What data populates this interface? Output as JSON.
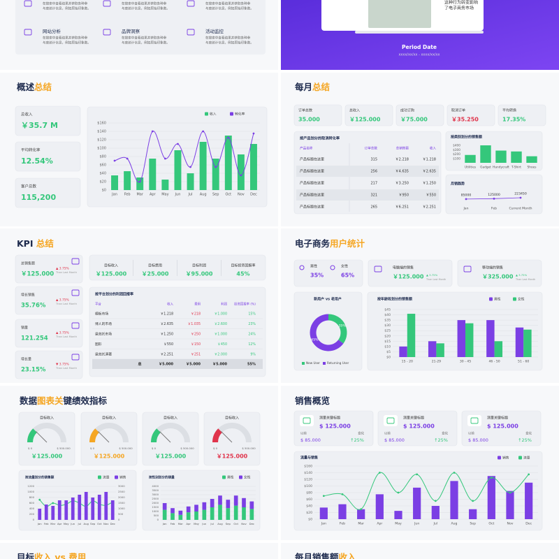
{
  "top_left": {
    "items": [
      {
        "text": [
          "在搜索中查看结果并获取各种参",
          "与度统计信息，例如原始印象数。"
        ]
      },
      {
        "text": [
          "在搜索中查看结果并获取各种参",
          "与度统计信息，例如原始印象数。"
        ]
      },
      {
        "text": [
          "在搜索中查看结果并获取各种参",
          "与度统计信息，例如原始印象数。"
        ]
      },
      {
        "title": "网站分析",
        "text": [
          "在搜索中查看结果并获取各种参",
          "与度统计信息，例如原始印象数。"
        ]
      },
      {
        "title": "品牌洞察",
        "text": [
          "在搜索中查看结果并获取各种参",
          "与度统计信息，例如原始印象数。"
        ]
      },
      {
        "title": "活动监控",
        "text": [
          "在搜索中查看结果并获取各种参",
          "与度统计信息，例如原始印象数。"
        ]
      }
    ]
  },
  "top_right": {
    "caption": [
      "这种行为转变影响",
      "了电子商务市场"
    ],
    "period_label": "Period Date",
    "period_value": "xxxx/xx/xx - xxxx/xx/xx"
  },
  "overview": {
    "title": "概述",
    "title_accent": "总结",
    "kpis": [
      {
        "label": "总收入",
        "value": "￥35.7 M"
      },
      {
        "label": "平均转化率",
        "value": "12.54%"
      },
      {
        "label": "客户总数",
        "value": "115,200"
      }
    ]
  },
  "monthly": {
    "title": "每月",
    "title_accent": "总结",
    "kpis": [
      {
        "label": "订单总数",
        "value": "35.000"
      },
      {
        "label": "总收入",
        "value": "￥125.000"
      },
      {
        "label": "成功订购",
        "value": "￥75.000"
      },
      {
        "label": "取消订单",
        "value": "￥35.250"
      },
      {
        "label": "平均转换",
        "value": "17.35%"
      }
    ],
    "table": {
      "title": "按产品划分的取消转化率",
      "header": [
        "产品名称",
        "订单总数",
        "总销售额",
        "收入"
      ],
      "rows": [
        [
          "产品标题在这里",
          "315",
          "￥2.218",
          "￥1.218"
        ],
        [
          "产品标题在这里",
          "256",
          "￥4.635",
          "￥2.635"
        ],
        [
          "产品标题在这里",
          "217",
          "￥3.250",
          "￥1.250"
        ],
        [
          "产品标题在这里",
          "321",
          "￥950",
          "￥550"
        ],
        [
          "产品标题在这里",
          "265",
          "￥6.251",
          "￥2.251"
        ]
      ]
    }
  },
  "kpi": {
    "title": "KPI ",
    "title_accent": "总结",
    "side": [
      {
        "label": "总销售额",
        "value": "￥125.000",
        "change": "▲ 3.75%",
        "note": "Than Last Month"
      },
      {
        "label": "增长销售",
        "value": "35.76%",
        "change": "▲ 3.75%",
        "note": "Than Last Month"
      },
      {
        "label": "销量",
        "value": "121.254",
        "change": "▲ 3.75%",
        "note": "Than Last Month"
      },
      {
        "label": "增长量",
        "value": "23.15%",
        "change": "▼ 3.75%",
        "note": "Than Last Month"
      }
    ],
    "top": [
      {
        "label": "目标收入",
        "value": "￥125.000"
      },
      {
        "label": "目标费用",
        "value": "￥25.000"
      },
      {
        "label": "目标利润",
        "value": "￥95.000"
      },
      {
        "label": "目标投资回报率",
        "value": "45%"
      }
    ],
    "table": {
      "title": "按平台划分的利润回报率",
      "header": [
        "平台",
        "收入",
        "费用",
        "利润",
        "投资回报率 (%)"
      ],
      "rows": [
        [
          "模板市场",
          "￥1.218",
          "￥218",
          "￥1.000",
          "15%"
        ],
        [
          "博人的市场",
          "￥2.635",
          "￥1.035",
          "￥2.600",
          "23%"
        ],
        [
          "恩范托市场",
          "￥1.250",
          "￥250",
          "￥1.000",
          "24%"
        ],
        [
          "图形",
          "￥550",
          "￥150",
          "￥450",
          "12%"
        ],
        [
          "恩范托演著",
          "￥2.251",
          "￥251",
          "￥2.000",
          "9%"
        ]
      ],
      "total": [
        "总",
        "￥5.000",
        "￥5.000",
        "￥5.000",
        "55%"
      ]
    }
  },
  "users": {
    "title": "电子商务",
    "title_accent": "用户统计",
    "male": {
      "label": "男性",
      "value": "35%"
    },
    "female": {
      "label": "女性",
      "value": "65%"
    },
    "cards": [
      {
        "label": "电脑端的销售",
        "value": "￥125.000",
        "change": "▲ 3.75%",
        "note": "Than Last Month"
      },
      {
        "label": "移动端的销售",
        "value": "￥325.000",
        "change": "▲ 3.75%",
        "note": "Than Last Month"
      }
    ]
  },
  "kpi_charts": {
    "title": "数据",
    "title_accent": "图表关",
    "title_rest": "键绩效指标"
  },
  "sales": {
    "title": "销售概览",
    "cards": [
      {
        "label": "测量关键标题",
        "value": "$ 125.000",
        "prev_label": "以前",
        "prev": "$ 85.000",
        "change_label": "变化",
        "change": "↑25%"
      },
      {
        "label": "测量关键标题",
        "value": "$ 125.000",
        "prev_label": "以前",
        "prev": "$ 85.000",
        "change_label": "变化",
        "change": "↑25%"
      },
      {
        "label": "测量关键标题",
        "value": "$ 125.000",
        "prev_label": "以前",
        "prev": "$ 85.000",
        "change_label": "变化",
        "change": "↑25%"
      }
    ]
  },
  "bottom": {
    "left": {
      "title": "目标",
      "title_accent": "收入 vs 费用"
    },
    "right": {
      "title": "每月销售额",
      "title_accent": "收入"
    }
  },
  "chart_data": [
    {
      "type": "combo",
      "categories": [
        "Jan",
        "Feb",
        "Mar",
        "Apr",
        "May",
        "Jun",
        "Jul",
        "Aug",
        "Sep",
        "Oct",
        "Nov",
        "Dec"
      ],
      "series": [
        {
          "name": "收入",
          "color": "#34c77b",
          "values": [
            35,
            45,
            30,
            75,
            25,
            95,
            40,
            115,
            75,
            130,
            85,
            110
          ]
        },
        {
          "name": "转化率",
          "color": "#7b3fe4",
          "style": "line",
          "values": [
            70,
            75,
            20,
            140,
            75,
            110,
            55,
            140,
            55,
            125,
            35,
            135
          ]
        }
      ],
      "ylim": [
        0,
        160
      ],
      "yticks": [
        {
          "value": 0,
          "label": "$0"
        },
        {
          "value": 20,
          "label": "$20"
        },
        {
          "value": 40,
          "label": "$40"
        },
        {
          "value": 60,
          "label": "$60"
        },
        {
          "value": 80,
          "label": "$80"
        },
        {
          "value": 100,
          "label": "$100"
        },
        {
          "value": 120,
          "label": "$120"
        },
        {
          "value": 140,
          "label": "$140"
        },
        {
          "value": 160,
          "label": "$160"
        }
      ],
      "grid": true
    },
    {
      "type": "bar",
      "title": "按类别划分的销售额",
      "categories": [
        "Utilities",
        "Gadget",
        "Handycraft",
        "T-Shirt",
        "Shoes"
      ],
      "series": [
        {
          "color": "#34c77b",
          "values": [
            180,
            400,
            280,
            260,
            150
          ]
        }
      ],
      "ylim": [
        0,
        400
      ],
      "yticks": [
        {
          "value": 100,
          "label": "$100"
        },
        {
          "value": 200,
          "label": "$200"
        },
        {
          "value": 300,
          "label": "$300"
        },
        {
          "value": 400,
          "label": "$400"
        }
      ],
      "grid": false
    },
    {
      "type": "line",
      "title": "月销趋势",
      "categories": [
        "Jan",
        "Feb",
        "Current Month"
      ],
      "values": [
        85000,
        125000,
        223450
      ],
      "color": "#7b3fe4"
    },
    {
      "type": "pie",
      "title": "新用户 vs 老用户",
      "categories": [
        "New User",
        "Returning User"
      ],
      "values": [
        35,
        65
      ],
      "value_labels": [
        "35%",
        "65%"
      ],
      "colors": [
        "#34c77b",
        "#7b3fe4"
      ]
    },
    {
      "type": "bar",
      "title": "按年龄段划分的销售额",
      "categories": [
        "15 - 20",
        "21-29",
        "30 - 45",
        "46 - 50",
        "51 - 60"
      ],
      "series": [
        {
          "name": "男性",
          "color": "#7b3fe4",
          "values": [
            10,
            15,
            35,
            35,
            28
          ]
        },
        {
          "name": "女性",
          "color": "#34c77b",
          "values": [
            41,
            13,
            32,
            15,
            26
          ]
        }
      ],
      "ylim": [
        0,
        45
      ],
      "yticks": [
        {
          "value": 0,
          "label": "$0"
        },
        {
          "value": 5,
          "label": "$5"
        },
        {
          "value": 10,
          "label": "$10"
        },
        {
          "value": 15,
          "label": "$15"
        },
        {
          "value": 20,
          "label": "$20"
        },
        {
          "value": 25,
          "label": "$25"
        },
        {
          "value": 30,
          "label": "$30"
        },
        {
          "value": 35,
          "label": "$35"
        },
        {
          "value": 40,
          "label": "$40"
        },
        {
          "value": 45,
          "label": "$45"
        }
      ],
      "grid": true
    },
    {
      "type": "gauge",
      "categories": [
        "目标收入",
        "目标收入",
        "目标收入",
        "目标收入"
      ],
      "values": [
        125000,
        125000,
        125000,
        125000
      ],
      "value_labels": [
        "￥125.000",
        "￥125.000",
        "￥125.000",
        "￥125.000"
      ],
      "colors": [
        "#34c77b",
        "#f5a623",
        "#34c77b",
        "#e0344b"
      ],
      "ylim": [
        0,
        500000
      ],
      "yticks": [
        {
          "value": 0,
          "label": "$ 0"
        },
        {
          "value": 500000,
          "label": "$ 500.000"
        }
      ]
    },
    {
      "type": "combo",
      "title": "按流量划分的销售额",
      "categories": [
        "Jan",
        "Feb",
        "Mar",
        "Apr",
        "May",
        "Jun",
        "Jul",
        "Aug",
        "Sep",
        "Oct",
        "Nov",
        "Dec"
      ],
      "series": [
        {
          "name": "流量",
          "color": "#34c77b",
          "style": "line",
          "axis": "y2",
          "values": [
            1800,
            1200,
            1500,
            1300,
            1400,
            1700,
            1500,
            1200,
            1700,
            1400,
            1300,
            1600
          ]
        },
        {
          "name": "销售",
          "color": "#7b3fe4",
          "values": [
            400,
            550,
            500,
            700,
            700,
            800,
            900,
            1000,
            800,
            900,
            1000,
            700
          ]
        }
      ],
      "ylim": [
        0,
        1200
      ],
      "yticks": [
        0,
        200,
        400,
        600,
        800,
        1000,
        1200
      ],
      "y2lim": [
        0,
        3000
      ],
      "y2ticks": [
        0,
        500,
        1000,
        1500,
        2000,
        2500,
        3000
      ],
      "grid": true
    },
    {
      "type": "bar",
      "title": "按性别划分的销量",
      "stacked": true,
      "categories": [
        "Jan",
        "Feb",
        "Mar",
        "Apr",
        "May",
        "Jun",
        "Jul",
        "Aug",
        "Sep",
        "Oct",
        "Nov",
        "Dec"
      ],
      "series": [
        {
          "name": "男性",
          "color": "#34c77b",
          "values": [
            1200,
            800,
            600,
            900,
            1000,
            1200,
            1500,
            1800,
            1400,
            1700,
            1500,
            1300
          ]
        },
        {
          "name": "女性",
          "color": "#7b3fe4",
          "values": [
            800,
            600,
            500,
            700,
            800,
            900,
            1000,
            1100,
            1000,
            1200,
            1100,
            900
          ]
        }
      ],
      "ylim": [
        0,
        4000
      ],
      "yticks": [
        0,
        500,
        1000,
        1500,
        2000,
        2500,
        3000,
        3500,
        4000
      ],
      "grid": true
    },
    {
      "type": "combo",
      "title": "流量与销售",
      "categories": [
        "Jan",
        "Feb",
        "Mar",
        "Apr",
        "May",
        "Jun",
        "Jul",
        "Aug",
        "Sep",
        "Oct",
        "Nov",
        "Dec"
      ],
      "series": [
        {
          "name": "销售",
          "color": "#7b3fe4",
          "values": [
            35,
            45,
            30,
            75,
            25,
            95,
            40,
            115,
            30,
            130,
            85,
            110
          ]
        },
        {
          "name": "流量",
          "color": "#34c77b",
          "style": "line",
          "values": [
            70,
            75,
            30,
            140,
            80,
            135,
            55,
            140,
            55,
            125,
            80,
            135
          ]
        }
      ],
      "ylim": [
        0,
        160
      ],
      "yticks": [
        {
          "value": 0,
          "label": "$0"
        },
        {
          "value": 20,
          "label": "$20"
        },
        {
          "value": 40,
          "label": "$40"
        },
        {
          "value": 60,
          "label": "$60"
        },
        {
          "value": 80,
          "label": "$80"
        },
        {
          "value": 100,
          "label": "$100"
        },
        {
          "value": 120,
          "label": "$120"
        },
        {
          "value": 140,
          "label": "$140"
        },
        {
          "value": 160,
          "label": "$160"
        }
      ],
      "grid": true
    }
  ]
}
